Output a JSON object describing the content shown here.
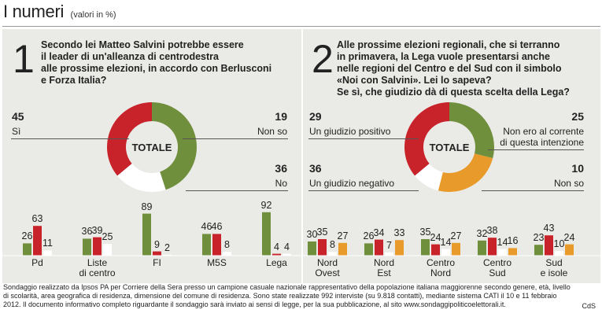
{
  "header": {
    "title": "I numeri",
    "subtitle": "(valori in %)"
  },
  "colors": {
    "green": "#6f8f3c",
    "red": "#c8222a",
    "orange": "#e89a2a",
    "white": "#ffffff",
    "panel": "#eaeae6"
  },
  "q1": {
    "number": "1",
    "text": [
      "Secondo lei Matteo Salvini potrebbe essere",
      "il leader di un'alleanza di centrodestra",
      "alle prossime elezioni, in accordo con Berlusconi",
      "e Forza Italia?"
    ],
    "center_label": "TOTALE",
    "answers": [
      {
        "value": "45",
        "label": "Sì"
      },
      {
        "value": "19",
        "label": "Non so"
      },
      {
        "value": "36",
        "label": "No"
      }
    ]
  },
  "q2": {
    "number": "2",
    "text": [
      "Alle prossime elezioni regionali, che si terranno",
      "in primavera,  la Lega vuole presentarsi anche",
      "nelle regioni del Centro e del Sud con il simbolo",
      "«Noi con Salvini». Lei lo sapeva?",
      "Se sì, che giudizio dà di questa scelta della Lega?"
    ],
    "center_label": "TOTALE",
    "answers": [
      {
        "value": "29",
        "label": "Un giudizio positivo"
      },
      {
        "value": "25",
        "label": [
          "Non ero al corrente",
          "di questa intenzione"
        ]
      },
      {
        "value": "36",
        "label": "Un giudizio negativo"
      },
      {
        "value": "10",
        "label": "Non so"
      }
    ]
  },
  "chart_data": [
    {
      "type": "pie",
      "labels": [
        "Sì",
        "Non so",
        "No"
      ],
      "values": [
        45,
        19,
        36
      ],
      "colors": [
        "#6f8f3c",
        "#ffffff",
        "#c8222a"
      ]
    },
    {
      "type": "pie",
      "labels": [
        "Un giudizio positivo",
        "Non ero al corrente di questa intenzione",
        "Non so",
        "Un giudizio negativo"
      ],
      "values": [
        29,
        25,
        10,
        36
      ],
      "colors": [
        "#6f8f3c",
        "#e89a2a",
        "#ffffff",
        "#c8222a"
      ]
    },
    {
      "type": "bar",
      "categories": [
        "Pd",
        "Liste di centro",
        "FI",
        "M5S",
        "Lega"
      ],
      "series": [
        {
          "values": [
            26,
            36,
            89,
            46,
            92
          ],
          "color": "#6f8f3c"
        },
        {
          "values": [
            63,
            39,
            9,
            46,
            4
          ],
          "color": "#c8222a"
        },
        {
          "values": [
            11,
            25,
            2,
            8,
            4
          ],
          "color": "#ffffff"
        }
      ]
    },
    {
      "type": "bar",
      "categories": [
        "Nord Ovest",
        "Nord Est",
        "Centro Nord",
        "Centro Sud",
        "Sud e isole"
      ],
      "series": [
        {
          "values": [
            30,
            26,
            35,
            32,
            23
          ],
          "color": "#6f8f3c"
        },
        {
          "values": [
            35,
            34,
            24,
            38,
            43
          ],
          "color": "#c8222a"
        },
        {
          "values": [
            8,
            7,
            14,
            14,
            10
          ],
          "color": "#ffffff"
        },
        {
          "values": [
            27,
            33,
            27,
            16,
            24
          ],
          "color": "#e89a2a"
        }
      ]
    }
  ],
  "bars_left": {
    "categories": [
      [
        "Pd"
      ],
      [
        "Liste",
        "di centro"
      ],
      [
        "FI"
      ],
      [
        "M5S"
      ],
      [
        "Lega"
      ]
    ]
  },
  "bars_right": {
    "categories": [
      [
        "Nord",
        "Ovest"
      ],
      [
        "Nord",
        "Est"
      ],
      [
        "Centro",
        "Nord"
      ],
      [
        "Centro",
        "Sud"
      ],
      [
        "Sud",
        "e isole"
      ]
    ]
  },
  "footer": {
    "lines": [
      "Sondaggio realizzato da Ipsos PA per Corriere della Sera presso un campione casuale nazionale rappresentativo della popolazione italiana maggiorenne secondo genere, età, livello",
      "di scolarità, area geografica di residenza, dimensione del comune di residenza. Sono state realizzate 992 interviste (su 9.818 contatti), mediante sistema CATI il 10 e 11 febbraio",
      "2012. Il documento informativo completo riguardante il sondaggio sarà inviato ai sensi di legge, per la sua pubblicazione, al sito www.sondaggipoliticoelettorali.it."
    ],
    "credit": "CdS"
  }
}
